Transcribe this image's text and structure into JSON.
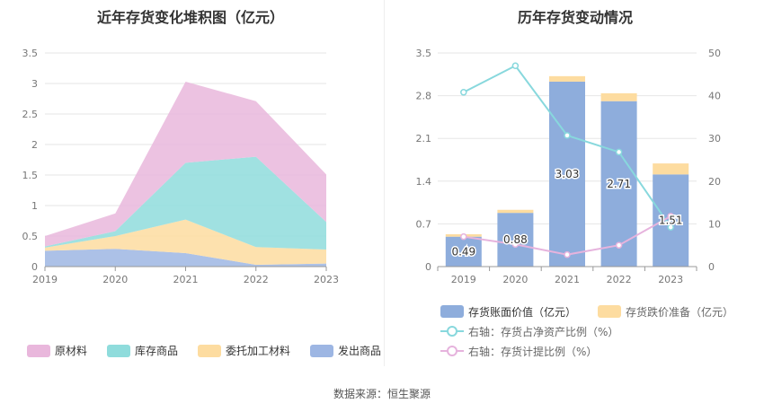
{
  "left_title": "近年存货变化堆积图（亿元）",
  "right_title": "历年存货变动情况",
  "source": "数据来源：恒生聚源",
  "colors": {
    "raw": "#e9b7dc",
    "stock": "#8fdcdc",
    "consign": "#fddca0",
    "shipped": "#9db6e3",
    "book": "#8eaddc",
    "reserve": "#fddca0",
    "ratio_net": "#88d8dd",
    "ratio_prov": "#e6b3dd"
  },
  "chart_data": [
    {
      "type": "area",
      "stacked": true,
      "categories": [
        "2019",
        "2020",
        "2021",
        "2022",
        "2023"
      ],
      "ylim": [
        0,
        3.5
      ],
      "yticks": [
        "0",
        "0.5",
        "1",
        "1.5",
        "2",
        "2.5",
        "3",
        "3.5"
      ],
      "series": [
        {
          "name": "发出商品",
          "values": [
            0.26,
            0.29,
            0.22,
            0.03,
            0.05
          ]
        },
        {
          "name": "委托加工材料",
          "values": [
            0.05,
            0.21,
            0.55,
            0.29,
            0.23
          ]
        },
        {
          "name": "库存商品",
          "values": [
            0.02,
            0.08,
            0.93,
            1.48,
            0.45
          ]
        },
        {
          "name": "原材料",
          "values": [
            0.17,
            0.29,
            1.33,
            0.91,
            0.78
          ]
        }
      ],
      "legend": "bottom"
    },
    {
      "type": "bar",
      "stacked": true,
      "categories": [
        "2019",
        "2020",
        "2021",
        "2022",
        "2023"
      ],
      "ylim": [
        0,
        3.5
      ],
      "yticks": [
        "0",
        "0.7",
        "1.4",
        "2.1",
        "2.8",
        "3.5"
      ],
      "y2lim": [
        0,
        50
      ],
      "y2ticks": [
        "0",
        "10",
        "20",
        "30",
        "40",
        "50"
      ],
      "series": [
        {
          "name": "存货账面价值（亿元）",
          "values": [
            0.49,
            0.88,
            3.03,
            2.71,
            1.51
          ],
          "labels": [
            "0.49",
            "0.88",
            "3.03",
            "2.71",
            "1.51"
          ]
        },
        {
          "name": "存货跌价准备（亿元）",
          "values": [
            0.04,
            0.05,
            0.09,
            0.13,
            0.18
          ]
        }
      ],
      "line_series": [
        {
          "name": "右轴：存货占净资产比例（%）",
          "axis": "right",
          "values": [
            40.8,
            47.0,
            30.7,
            26.8,
            9.2
          ]
        },
        {
          "name": "右轴：存货计提比例（%）",
          "axis": "right",
          "values": [
            7.0,
            5.2,
            2.8,
            5.0,
            11.8
          ]
        }
      ],
      "legend": "bottom"
    }
  ]
}
